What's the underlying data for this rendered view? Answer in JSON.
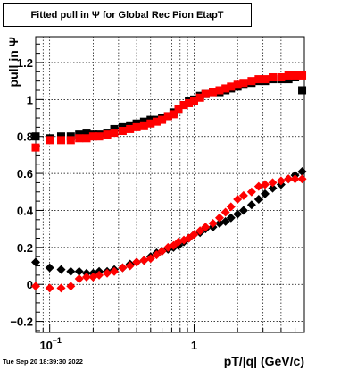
{
  "chart_data": {
    "type": "scatter",
    "title": "Fitted pull in  Ψ  for Global Rec Pion EtapT",
    "xlabel": "pT/|q| (GeV/c)",
    "ylabel": "pull in Ψ",
    "x_scale": "log",
    "xlim": [
      0.08,
      5.8
    ],
    "ylim": [
      -0.26,
      1.34
    ],
    "grid": true,
    "x_ticks": [
      {
        "value": 0.1,
        "label": "10",
        "exp": "−1"
      },
      {
        "value": 1,
        "label": "1",
        "exp": ""
      }
    ],
    "y_ticks": [
      {
        "value": -0.2,
        "label": "−0.2"
      },
      {
        "value": 0,
        "label": "0"
      },
      {
        "value": 0.2,
        "label": "0.2"
      },
      {
        "value": 0.4,
        "label": "0.4"
      },
      {
        "value": 0.6,
        "label": "0.6"
      },
      {
        "value": 0.8,
        "label": "0.8"
      },
      {
        "value": 1,
        "label": "1"
      },
      {
        "value": 1.2,
        "label": "1.2"
      }
    ],
    "series": [
      {
        "marker": "square",
        "color": "#000000",
        "points": [
          [
            0.08,
            0.8
          ],
          [
            0.1,
            0.79
          ],
          [
            0.12,
            0.8
          ],
          [
            0.14,
            0.8
          ],
          [
            0.16,
            0.81
          ],
          [
            0.18,
            0.82
          ],
          [
            0.2,
            0.81
          ],
          [
            0.22,
            0.81
          ],
          [
            0.25,
            0.82
          ],
          [
            0.28,
            0.84
          ],
          [
            0.32,
            0.85
          ],
          [
            0.36,
            0.86
          ],
          [
            0.4,
            0.87
          ],
          [
            0.45,
            0.88
          ],
          [
            0.5,
            0.89
          ],
          [
            0.55,
            0.89
          ],
          [
            0.6,
            0.9
          ],
          [
            0.66,
            0.91
          ],
          [
            0.72,
            0.93
          ],
          [
            0.78,
            0.95
          ],
          [
            0.85,
            0.97
          ],
          [
            0.92,
            0.99
          ],
          [
            1.0,
            1.0
          ],
          [
            1.1,
            1.02
          ],
          [
            1.2,
            1.03
          ],
          [
            1.35,
            1.04
          ],
          [
            1.5,
            1.04
          ],
          [
            1.65,
            1.05
          ],
          [
            1.8,
            1.06
          ],
          [
            2.0,
            1.07
          ],
          [
            2.2,
            1.08
          ],
          [
            2.5,
            1.09
          ],
          [
            2.8,
            1.1
          ],
          [
            3.1,
            1.1
          ],
          [
            3.5,
            1.11
          ],
          [
            4.0,
            1.11
          ],
          [
            4.5,
            1.11
          ],
          [
            5.0,
            1.12
          ],
          [
            5.6,
            1.05
          ]
        ]
      },
      {
        "marker": "square",
        "color": "#ff0000",
        "points": [
          [
            0.08,
            0.74
          ],
          [
            0.1,
            0.78
          ],
          [
            0.12,
            0.78
          ],
          [
            0.14,
            0.78
          ],
          [
            0.16,
            0.79
          ],
          [
            0.18,
            0.79
          ],
          [
            0.2,
            0.8
          ],
          [
            0.22,
            0.8
          ],
          [
            0.25,
            0.81
          ],
          [
            0.28,
            0.82
          ],
          [
            0.32,
            0.83
          ],
          [
            0.36,
            0.84
          ],
          [
            0.4,
            0.85
          ],
          [
            0.45,
            0.86
          ],
          [
            0.5,
            0.87
          ],
          [
            0.55,
            0.88
          ],
          [
            0.6,
            0.89
          ],
          [
            0.66,
            0.91
          ],
          [
            0.72,
            0.92
          ],
          [
            0.78,
            0.95
          ],
          [
            0.85,
            0.97
          ],
          [
            0.92,
            0.98
          ],
          [
            1.0,
            0.99
          ],
          [
            1.1,
            1.01
          ],
          [
            1.2,
            1.03
          ],
          [
            1.35,
            1.04
          ],
          [
            1.5,
            1.05
          ],
          [
            1.65,
            1.06
          ],
          [
            1.8,
            1.07
          ],
          [
            2.0,
            1.08
          ],
          [
            2.2,
            1.09
          ],
          [
            2.5,
            1.1
          ],
          [
            2.8,
            1.11
          ],
          [
            3.1,
            1.11
          ],
          [
            3.5,
            1.12
          ],
          [
            4.0,
            1.12
          ],
          [
            4.5,
            1.13
          ],
          [
            5.0,
            1.13
          ],
          [
            5.6,
            1.13
          ]
        ]
      },
      {
        "marker": "diamond",
        "color": "#000000",
        "points": [
          [
            0.08,
            0.12
          ],
          [
            0.1,
            0.09
          ],
          [
            0.12,
            0.08
          ],
          [
            0.14,
            0.07
          ],
          [
            0.16,
            0.07
          ],
          [
            0.18,
            0.06
          ],
          [
            0.2,
            0.06
          ],
          [
            0.22,
            0.07
          ],
          [
            0.25,
            0.07
          ],
          [
            0.28,
            0.08
          ],
          [
            0.32,
            0.09
          ],
          [
            0.36,
            0.11
          ],
          [
            0.4,
            0.12
          ],
          [
            0.45,
            0.13
          ],
          [
            0.5,
            0.15
          ],
          [
            0.55,
            0.17
          ],
          [
            0.6,
            0.18
          ],
          [
            0.66,
            0.19
          ],
          [
            0.72,
            0.2
          ],
          [
            0.78,
            0.21
          ],
          [
            0.85,
            0.23
          ],
          [
            0.92,
            0.25
          ],
          [
            1.0,
            0.27
          ],
          [
            1.1,
            0.28
          ],
          [
            1.2,
            0.3
          ],
          [
            1.35,
            0.31
          ],
          [
            1.5,
            0.33
          ],
          [
            1.65,
            0.34
          ],
          [
            1.8,
            0.36
          ],
          [
            2.0,
            0.38
          ],
          [
            2.2,
            0.4
          ],
          [
            2.5,
            0.43
          ],
          [
            2.8,
            0.46
          ],
          [
            3.1,
            0.49
          ],
          [
            3.5,
            0.52
          ],
          [
            4.0,
            0.54
          ],
          [
            4.5,
            0.57
          ],
          [
            5.0,
            0.59
          ],
          [
            5.6,
            0.61
          ]
        ]
      },
      {
        "marker": "diamond",
        "color": "#ff0000",
        "points": [
          [
            0.08,
            -0.01
          ],
          [
            0.1,
            -0.02
          ],
          [
            0.12,
            -0.02
          ],
          [
            0.14,
            -0.01
          ],
          [
            0.16,
            0.03
          ],
          [
            0.18,
            0.04
          ],
          [
            0.2,
            0.04
          ],
          [
            0.22,
            0.05
          ],
          [
            0.25,
            0.06
          ],
          [
            0.28,
            0.07
          ],
          [
            0.32,
            0.09
          ],
          [
            0.36,
            0.1
          ],
          [
            0.4,
            0.12
          ],
          [
            0.45,
            0.13
          ],
          [
            0.5,
            0.14
          ],
          [
            0.55,
            0.16
          ],
          [
            0.6,
            0.18
          ],
          [
            0.66,
            0.2
          ],
          [
            0.72,
            0.21
          ],
          [
            0.78,
            0.23
          ],
          [
            0.85,
            0.24
          ],
          [
            0.92,
            0.25
          ],
          [
            1.0,
            0.27
          ],
          [
            1.1,
            0.29
          ],
          [
            1.2,
            0.31
          ],
          [
            1.35,
            0.33
          ],
          [
            1.5,
            0.36
          ],
          [
            1.65,
            0.39
          ],
          [
            1.8,
            0.42
          ],
          [
            2.0,
            0.46
          ],
          [
            2.2,
            0.48
          ],
          [
            2.5,
            0.5
          ],
          [
            2.8,
            0.53
          ],
          [
            3.1,
            0.54
          ],
          [
            3.5,
            0.55
          ],
          [
            4.0,
            0.56
          ],
          [
            4.5,
            0.57
          ],
          [
            5.0,
            0.57
          ],
          [
            5.6,
            0.57
          ]
        ]
      }
    ]
  },
  "footer": {
    "timestamp": "Tue Sep 20 18:39:30 2022"
  }
}
